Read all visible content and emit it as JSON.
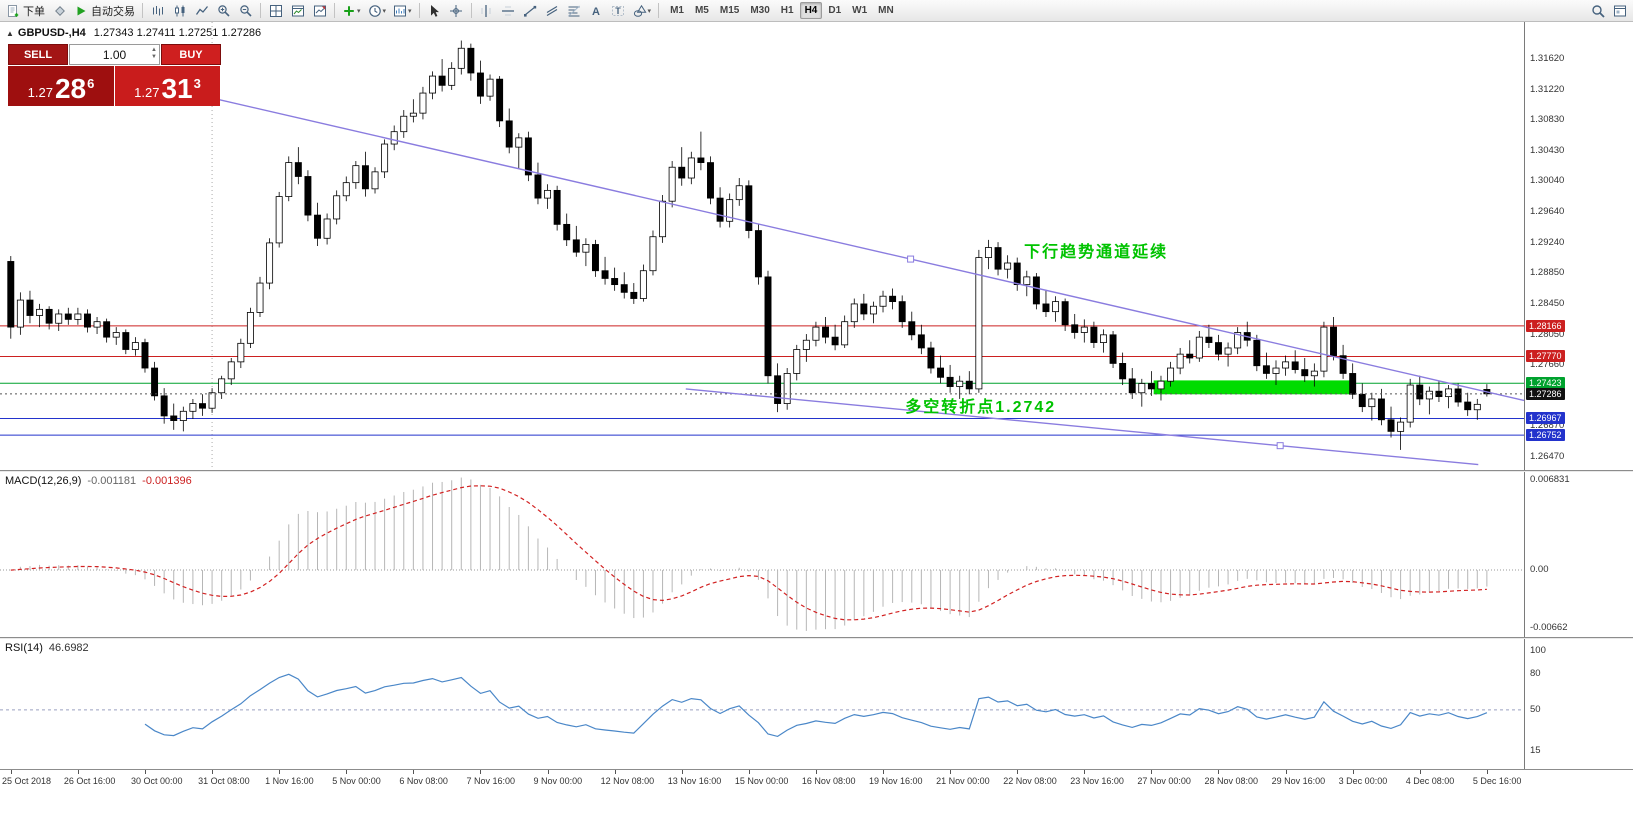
{
  "colors": {
    "sell-red": "#a31515",
    "buy-red": "#cf1f1f",
    "panel-red-dark": "#9e0f0f",
    "panel-red-bright": "#c91c1c",
    "annotation-green": "#00c300",
    "trend-purple": "#8a7cdf",
    "rsi-blue": "#4a87c8",
    "macd-signal-red": "#d22222",
    "macd-hist-gray": "#b6b6b6",
    "highlight-green": "#00dc00"
  },
  "toolbar": {
    "order_label": "下单",
    "autotrade_label": "自动交易",
    "timeframes": [
      "M1",
      "M5",
      "M15",
      "M30",
      "H1",
      "H4",
      "D1",
      "W1",
      "MN"
    ],
    "active_timeframe": "H4"
  },
  "chart": {
    "collapse_arrow": "▲",
    "symbol_label": "GBPUSD-,H4",
    "ohlc_values": "1.27343 1.27411 1.27251 1.27286",
    "trade_panel": {
      "sell_label": "SELL",
      "buy_label": "BUY",
      "lot_value": "1.00",
      "sell_price_prefix": "1.27",
      "sell_price_big": "28",
      "sell_price_sup": "6",
      "buy_price_prefix": "1.27",
      "buy_price_big": "31",
      "buy_price_sup": "3"
    },
    "annotations": [
      {
        "text": "下行趋势通道延续",
        "x": 0.672,
        "price": 1.2918
      },
      {
        "text": "多空转折点1.2742",
        "x": 0.594,
        "price": 1.2717
      }
    ]
  },
  "chart_data": {
    "type": "candlestick",
    "title": "GBPUSD- H4",
    "price_range": [
      1.263,
      1.321
    ],
    "axis_ticks": [
      "1.31620",
      "1.31220",
      "1.30830",
      "1.30430",
      "1.30040",
      "1.29640",
      "1.29240",
      "1.28850",
      "1.28450",
      "1.28050",
      "1.27660",
      "1.27260",
      "1.26870",
      "1.26470"
    ],
    "x_labels": [
      "25 Oct 2018",
      "26 Oct 16:00",
      "30 Oct 00:00",
      "31 Oct 08:00",
      "1 Nov 16:00",
      "5 Nov 00:00",
      "6 Nov 08:00",
      "7 Nov 16:00",
      "9 Nov 00:00",
      "12 Nov 08:00",
      "13 Nov 16:00",
      "15 Nov 00:00",
      "16 Nov 08:00",
      "19 Nov 16:00",
      "21 Nov 00:00",
      "22 Nov 08:00",
      "23 Nov 16:00",
      "27 Nov 00:00",
      "28 Nov 08:00",
      "29 Nov 16:00",
      "3 Dec 00:00",
      "4 Dec 08:00",
      "5 Dec 16:00"
    ],
    "label_every": 7,
    "ohlc": [
      [
        1.29,
        1.2907,
        1.28,
        1.2815
      ],
      [
        1.2815,
        1.286,
        1.2805,
        1.285
      ],
      [
        1.285,
        1.2862,
        1.282,
        1.283
      ],
      [
        1.283,
        1.2845,
        1.2815,
        1.2838
      ],
      [
        1.2838,
        1.2842,
        1.2812,
        1.282
      ],
      [
        1.282,
        1.2838,
        1.281,
        1.2832
      ],
      [
        1.2832,
        1.284,
        1.2818,
        1.2825
      ],
      [
        1.2825,
        1.284,
        1.2818,
        1.2832
      ],
      [
        1.2832,
        1.2838,
        1.2808,
        1.2815
      ],
      [
        1.2815,
        1.2828,
        1.2806,
        1.2822
      ],
      [
        1.2822,
        1.2826,
        1.2795,
        1.2802
      ],
      [
        1.2802,
        1.2815,
        1.2792,
        1.2808
      ],
      [
        1.2808,
        1.2812,
        1.278,
        1.2786
      ],
      [
        1.2786,
        1.2802,
        1.2778,
        1.2795
      ],
      [
        1.2795,
        1.28,
        1.2756,
        1.2762
      ],
      [
        1.2762,
        1.277,
        1.272,
        1.2726
      ],
      [
        1.2726,
        1.2736,
        1.269,
        1.27
      ],
      [
        1.27,
        1.2716,
        1.2682,
        1.2694
      ],
      [
        1.2694,
        1.2712,
        1.268,
        1.2706
      ],
      [
        1.2706,
        1.2722,
        1.2696,
        1.2716
      ],
      [
        1.2716,
        1.2728,
        1.27,
        1.271
      ],
      [
        1.271,
        1.2736,
        1.2704,
        1.273
      ],
      [
        1.273,
        1.2752,
        1.2722,
        1.2748
      ],
      [
        1.2748,
        1.2775,
        1.274,
        1.277
      ],
      [
        1.277,
        1.28,
        1.2762,
        1.2794
      ],
      [
        1.2794,
        1.284,
        1.2788,
        1.2834
      ],
      [
        1.2834,
        1.288,
        1.2828,
        1.2872
      ],
      [
        1.2872,
        1.293,
        1.2864,
        1.2924
      ],
      [
        1.2924,
        1.299,
        1.2918,
        1.2984
      ],
      [
        1.2984,
        1.3036,
        1.2978,
        1.3028
      ],
      [
        1.3028,
        1.3048,
        1.3,
        1.301
      ],
      [
        1.301,
        1.3018,
        1.2952,
        1.296
      ],
      [
        1.296,
        1.2976,
        1.292,
        1.293
      ],
      [
        1.293,
        1.2962,
        1.2922,
        1.2955
      ],
      [
        1.2955,
        1.2992,
        1.2948,
        1.2985
      ],
      [
        1.2985,
        1.301,
        1.2978,
        1.3002
      ],
      [
        1.3002,
        1.303,
        1.2994,
        1.3024
      ],
      [
        1.3024,
        1.3042,
        1.2984,
        1.2994
      ],
      [
        1.2994,
        1.3022,
        1.2988,
        1.3016
      ],
      [
        1.3016,
        1.3058,
        1.3008,
        1.3052
      ],
      [
        1.3052,
        1.3076,
        1.3044,
        1.3068
      ],
      [
        1.3068,
        1.3096,
        1.306,
        1.3088
      ],
      [
        1.3088,
        1.311,
        1.308,
        1.3092
      ],
      [
        1.3092,
        1.3126,
        1.3084,
        1.3118
      ],
      [
        1.3118,
        1.3146,
        1.311,
        1.314
      ],
      [
        1.314,
        1.3162,
        1.312,
        1.3128
      ],
      [
        1.3128,
        1.3158,
        1.3122,
        1.315
      ],
      [
        1.315,
        1.3186,
        1.3142,
        1.3176
      ],
      [
        1.3176,
        1.3182,
        1.3134,
        1.3144
      ],
      [
        1.3144,
        1.316,
        1.3104,
        1.3114
      ],
      [
        1.3114,
        1.3142,
        1.3108,
        1.3136
      ],
      [
        1.3136,
        1.314,
        1.3074,
        1.3082
      ],
      [
        1.3082,
        1.3098,
        1.304,
        1.3048
      ],
      [
        1.3048,
        1.3066,
        1.302,
        1.306
      ],
      [
        1.306,
        1.3068,
        1.3004,
        1.3012
      ],
      [
        1.3012,
        1.3028,
        1.2974,
        1.2982
      ],
      [
        1.2982,
        1.3,
        1.2968,
        1.2992
      ],
      [
        1.2992,
        1.2998,
        1.294,
        1.2948
      ],
      [
        1.2948,
        1.2962,
        1.292,
        1.2928
      ],
      [
        1.2928,
        1.2946,
        1.2906,
        1.2912
      ],
      [
        1.2912,
        1.293,
        1.2894,
        1.2922
      ],
      [
        1.2922,
        1.2928,
        1.288,
        1.2888
      ],
      [
        1.2888,
        1.2906,
        1.287,
        1.2878
      ],
      [
        1.2878,
        1.2892,
        1.2862,
        1.287
      ],
      [
        1.287,
        1.2886,
        1.2852,
        1.286
      ],
      [
        1.286,
        1.2872,
        1.2845,
        1.2852
      ],
      [
        1.2852,
        1.2896,
        1.2848,
        1.2888
      ],
      [
        1.2888,
        1.294,
        1.2882,
        1.2932
      ],
      [
        1.2932,
        1.2986,
        1.2924,
        1.2978
      ],
      [
        1.2978,
        1.303,
        1.297,
        1.3022
      ],
      [
        1.3022,
        1.3048,
        1.2998,
        1.3008
      ],
      [
        1.3008,
        1.3042,
        1.3,
        1.3034
      ],
      [
        1.3034,
        1.3068,
        1.3018,
        1.3028
      ],
      [
        1.3028,
        1.3036,
        1.2974,
        1.2982
      ],
      [
        1.2982,
        1.2996,
        1.2944,
        1.2952
      ],
      [
        1.2952,
        1.2988,
        1.2944,
        1.298
      ],
      [
        1.298,
        1.3008,
        1.2972,
        1.2998
      ],
      [
        1.2998,
        1.3005,
        1.293,
        1.294
      ],
      [
        1.294,
        1.2948,
        1.287,
        1.288
      ],
      [
        1.288,
        1.2888,
        1.2742,
        1.2752
      ],
      [
        1.2752,
        1.2768,
        1.2705,
        1.2716
      ],
      [
        1.2716,
        1.2762,
        1.2708,
        1.2755
      ],
      [
        1.2755,
        1.2792,
        1.2746,
        1.2786
      ],
      [
        1.2786,
        1.2806,
        1.277,
        1.2798
      ],
      [
        1.2798,
        1.2822,
        1.279,
        1.2815
      ],
      [
        1.2815,
        1.2828,
        1.2794,
        1.2802
      ],
      [
        1.2802,
        1.2818,
        1.2785,
        1.2792
      ],
      [
        1.2792,
        1.283,
        1.2788,
        1.2822
      ],
      [
        1.2822,
        1.2852,
        1.2814,
        1.2845
      ],
      [
        1.2845,
        1.2858,
        1.2824,
        1.2832
      ],
      [
        1.2832,
        1.2848,
        1.282,
        1.2842
      ],
      [
        1.2842,
        1.2862,
        1.2834,
        1.2855
      ],
      [
        1.2855,
        1.2865,
        1.2838,
        1.2848
      ],
      [
        1.2848,
        1.2856,
        1.2814,
        1.2822
      ],
      [
        1.2822,
        1.2835,
        1.2798,
        1.2805
      ],
      [
        1.2805,
        1.2818,
        1.278,
        1.2788
      ],
      [
        1.2788,
        1.2796,
        1.2755,
        1.2762
      ],
      [
        1.2762,
        1.2778,
        1.2742,
        1.275
      ],
      [
        1.275,
        1.2766,
        1.273,
        1.2738
      ],
      [
        1.2738,
        1.2752,
        1.2722,
        1.2745
      ],
      [
        1.2745,
        1.2758,
        1.2728,
        1.2735
      ],
      [
        1.2735,
        1.2915,
        1.273,
        1.2905
      ],
      [
        1.2905,
        1.2928,
        1.289,
        1.2918
      ],
      [
        1.2918,
        1.2925,
        1.2882,
        1.289
      ],
      [
        1.289,
        1.2908,
        1.2878,
        1.2898
      ],
      [
        1.2898,
        1.2905,
        1.2862,
        1.287
      ],
      [
        1.287,
        1.2888,
        1.2855,
        1.288
      ],
      [
        1.288,
        1.2885,
        1.2838,
        1.2845
      ],
      [
        1.2845,
        1.2862,
        1.2828,
        1.2835
      ],
      [
        1.2835,
        1.2855,
        1.2822,
        1.2848
      ],
      [
        1.2848,
        1.2852,
        1.281,
        1.2818
      ],
      [
        1.2818,
        1.2832,
        1.28,
        1.2808
      ],
      [
        1.2808,
        1.2825,
        1.2795,
        1.2815
      ],
      [
        1.2815,
        1.2822,
        1.2788,
        1.2795
      ],
      [
        1.2795,
        1.2812,
        1.2782,
        1.2805
      ],
      [
        1.2805,
        1.281,
        1.2762,
        1.2768
      ],
      [
        1.2768,
        1.2782,
        1.274,
        1.2748
      ],
      [
        1.2748,
        1.2762,
        1.2722,
        1.273
      ],
      [
        1.273,
        1.2748,
        1.2712,
        1.2742
      ],
      [
        1.2742,
        1.2758,
        1.2726,
        1.2735
      ],
      [
        1.2735,
        1.2752,
        1.272,
        1.2745
      ],
      [
        1.2745,
        1.277,
        1.2738,
        1.2762
      ],
      [
        1.2762,
        1.2788,
        1.2754,
        1.278
      ],
      [
        1.278,
        1.2798,
        1.2768,
        1.2775
      ],
      [
        1.2775,
        1.281,
        1.277,
        1.2802
      ],
      [
        1.2802,
        1.2818,
        1.2788,
        1.2795
      ],
      [
        1.2795,
        1.2805,
        1.2772,
        1.278
      ],
      [
        1.278,
        1.2795,
        1.2764,
        1.2788
      ],
      [
        1.2788,
        1.2815,
        1.278,
        1.2808
      ],
      [
        1.2808,
        1.2822,
        1.279,
        1.2798
      ],
      [
        1.2798,
        1.2805,
        1.2758,
        1.2765
      ],
      [
        1.2765,
        1.2782,
        1.2748,
        1.2755
      ],
      [
        1.2755,
        1.2772,
        1.274,
        1.2762
      ],
      [
        1.2762,
        1.2778,
        1.2752,
        1.277
      ],
      [
        1.277,
        1.2785,
        1.2755,
        1.276
      ],
      [
        1.276,
        1.2775,
        1.2744,
        1.2752
      ],
      [
        1.2752,
        1.2768,
        1.2738,
        1.2758
      ],
      [
        1.2758,
        1.2822,
        1.275,
        1.2815
      ],
      [
        1.2815,
        1.2828,
        1.2772,
        1.2778
      ],
      [
        1.2778,
        1.2792,
        1.2748,
        1.2755
      ],
      [
        1.2755,
        1.2768,
        1.2722,
        1.2728
      ],
      [
        1.2728,
        1.2742,
        1.2705,
        1.2712
      ],
      [
        1.2712,
        1.273,
        1.2694,
        1.2722
      ],
      [
        1.2722,
        1.2735,
        1.2688,
        1.2695
      ],
      [
        1.2695,
        1.2712,
        1.2672,
        1.268
      ],
      [
        1.268,
        1.2698,
        1.2656,
        1.2692
      ],
      [
        1.2692,
        1.2748,
        1.2685,
        1.274
      ],
      [
        1.274,
        1.2752,
        1.2714,
        1.2722
      ],
      [
        1.2722,
        1.2738,
        1.2702,
        1.2732
      ],
      [
        1.2732,
        1.2745,
        1.2718,
        1.2725
      ],
      [
        1.2725,
        1.274,
        1.271,
        1.2735
      ],
      [
        1.2735,
        1.2742,
        1.2712,
        1.2718
      ],
      [
        1.2718,
        1.273,
        1.27,
        1.2708
      ],
      [
        1.2708,
        1.2722,
        1.2695,
        1.2715
      ],
      [
        1.27343,
        1.27411,
        1.27251,
        1.27286
      ]
    ],
    "hlines": [
      {
        "price": 1.28166,
        "color": "#cc2020",
        "tag": "1.28166"
      },
      {
        "price": 1.2777,
        "color": "#cc2020",
        "tag": "1.27770"
      },
      {
        "price": 1.27423,
        "color": "#00a22e",
        "tag": "1.27423"
      },
      {
        "price": 1.26967,
        "color": "#2333cc",
        "tag": "1.26967"
      },
      {
        "price": 1.26752,
        "color": "#2333cc",
        "tag": "1.26752"
      }
    ],
    "current_price": {
      "value": 1.27286,
      "tag": "1.27286",
      "color": "#111111"
    },
    "trendlines": [
      {
        "x1": 0.125,
        "p1": 1.3118,
        "x2": 1.0,
        "p2": 1.272,
        "handle_t": 0.54
      },
      {
        "x1": 0.45,
        "p1": 1.2735,
        "x2": 0.97,
        "p2": 1.2637,
        "handle_t": 0.75
      }
    ],
    "highlight_box": {
      "x1": 0.757,
      "x2": 0.889,
      "p1": 1.2746,
      "p2": 1.2728
    },
    "vline_idx": [
      21
    ],
    "macd": {
      "name": "MACD(12,26,9)",
      "value_main": "-0.001181",
      "value_signal": "-0.001396",
      "fast": 12,
      "slow": 26,
      "signal": 9,
      "axis": [
        {
          "v": 0.006831,
          "t": "0.006831"
        },
        {
          "v": 0,
          "t": "0.00"
        },
        {
          "v": -0.00662,
          "t": "-0.00662"
        }
      ]
    },
    "rsi": {
      "name": "RSI(14)",
      "value": "46.6982",
      "period": 14,
      "range": [
        0,
        110
      ],
      "axis": [
        {
          "v": 100,
          "t": "100"
        },
        {
          "v": 80,
          "t": "80"
        },
        {
          "v": 50,
          "t": "50"
        },
        {
          "v": 15,
          "t": "15"
        }
      ],
      "levels": [
        50
      ]
    }
  }
}
